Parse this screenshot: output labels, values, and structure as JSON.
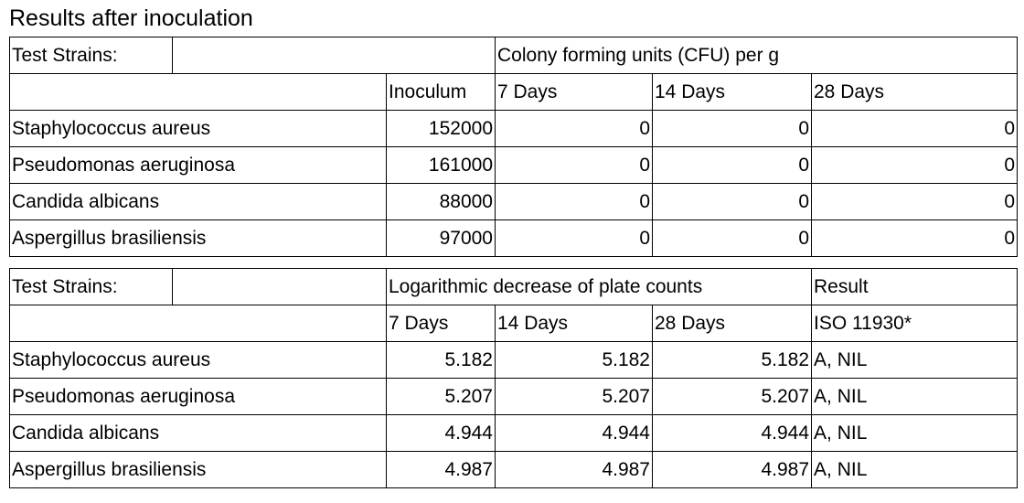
{
  "title": "Results after inoculation",
  "table1": {
    "header": [
      "Test Strains:",
      "Colony forming units (CFU) per g"
    ],
    "columns": [
      "Inoculum",
      "7 Days",
      "14 Days",
      "28 Days"
    ],
    "rows": [
      {
        "strain": "Staphylococcus aureus",
        "values": [
          152000,
          0,
          0,
          0
        ]
      },
      {
        "strain": "Pseudomonas aeruginosa",
        "values": [
          161000,
          0,
          0,
          0
        ]
      },
      {
        "strain": "Candida albicans",
        "values": [
          88000,
          0,
          0,
          0
        ]
      },
      {
        "strain": "Aspergillus brasiliensis",
        "values": [
          97000,
          0,
          0,
          0
        ]
      }
    ]
  },
  "table2": {
    "header": [
      "Test Strains:",
      "Logarithmic decrease of plate counts",
      "Result"
    ],
    "columns": [
      "7 Days",
      "14 Days",
      "28 Days",
      "ISO 11930*"
    ],
    "rows": [
      {
        "strain": "Staphylococcus aureus",
        "values": [
          5.182,
          5.182,
          5.182
        ],
        "result": "A, NIL"
      },
      {
        "strain": "Pseudomonas aeruginosa",
        "values": [
          5.207,
          5.207,
          5.207
        ],
        "result": "A, NIL"
      },
      {
        "strain": "Candida albicans",
        "values": [
          4.944,
          4.944,
          4.944
        ],
        "result": "A, NIL"
      },
      {
        "strain": "Aspergillus brasiliensis",
        "values": [
          4.987,
          4.987,
          4.987
        ],
        "result": "A, NIL"
      }
    ]
  }
}
